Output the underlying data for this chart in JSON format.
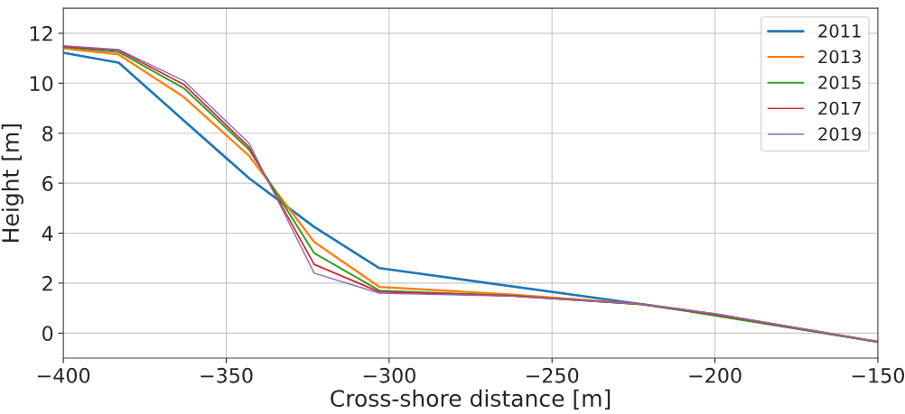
{
  "chart_data": {
    "type": "line",
    "xlabel": "Cross-shore distance [m]",
    "ylabel": "Height [m]",
    "xlim": [
      -400,
      -150
    ],
    "xticks": [
      {
        "value": -400,
        "label": "−400"
      },
      {
        "value": -350,
        "label": "−350"
      },
      {
        "value": -300,
        "label": "−300"
      },
      {
        "value": -250,
        "label": "−250"
      },
      {
        "value": -200,
        "label": "−200"
      },
      {
        "value": -150,
        "label": "−150"
      }
    ],
    "ylim": [
      -1,
      13
    ],
    "yticks": [
      0,
      2,
      4,
      6,
      8,
      10,
      12
    ],
    "grid": true,
    "legend": "top right",
    "series": [
      {
        "name": "2011",
        "color": "#1f77b4",
        "x": [
          -400,
          -383,
          -363,
          -343,
          -323,
          -303,
          -222,
          -200,
          -150
        ],
        "values": [
          11.22,
          10.82,
          8.5,
          6.2,
          4.25,
          2.6,
          1.15,
          0.75,
          -0.35
        ]
      },
      {
        "name": "2013",
        "color": "#ff7f0e",
        "x": [
          -400,
          -383,
          -363,
          -343,
          -323,
          -303,
          -263,
          -222,
          -200,
          -150
        ],
        "values": [
          11.4,
          11.15,
          9.45,
          7.1,
          3.65,
          1.85,
          1.55,
          1.15,
          0.75,
          -0.35
        ]
      },
      {
        "name": "2015",
        "color": "#2ca02c",
        "x": [
          -400,
          -383,
          -363,
          -343,
          -323,
          -303,
          -263,
          -222,
          -200,
          -150
        ],
        "values": [
          11.45,
          11.25,
          9.8,
          7.35,
          3.2,
          1.7,
          1.5,
          1.15,
          0.7,
          -0.35
        ]
      },
      {
        "name": "2017",
        "color": "#d62728",
        "x": [
          -400,
          -383,
          -363,
          -343,
          -323,
          -303,
          -263,
          -222,
          -200,
          -150
        ],
        "values": [
          11.47,
          11.32,
          9.95,
          7.45,
          2.75,
          1.65,
          1.5,
          1.15,
          0.75,
          -0.35
        ]
      },
      {
        "name": "2019",
        "color": "#9467bd",
        "x": [
          -400,
          -383,
          -363,
          -343,
          -323,
          -303,
          -263,
          -222,
          -200,
          -150
        ],
        "values": [
          11.5,
          11.35,
          10.1,
          7.6,
          2.4,
          1.6,
          1.48,
          1.15,
          0.78,
          -0.35
        ]
      }
    ]
  }
}
